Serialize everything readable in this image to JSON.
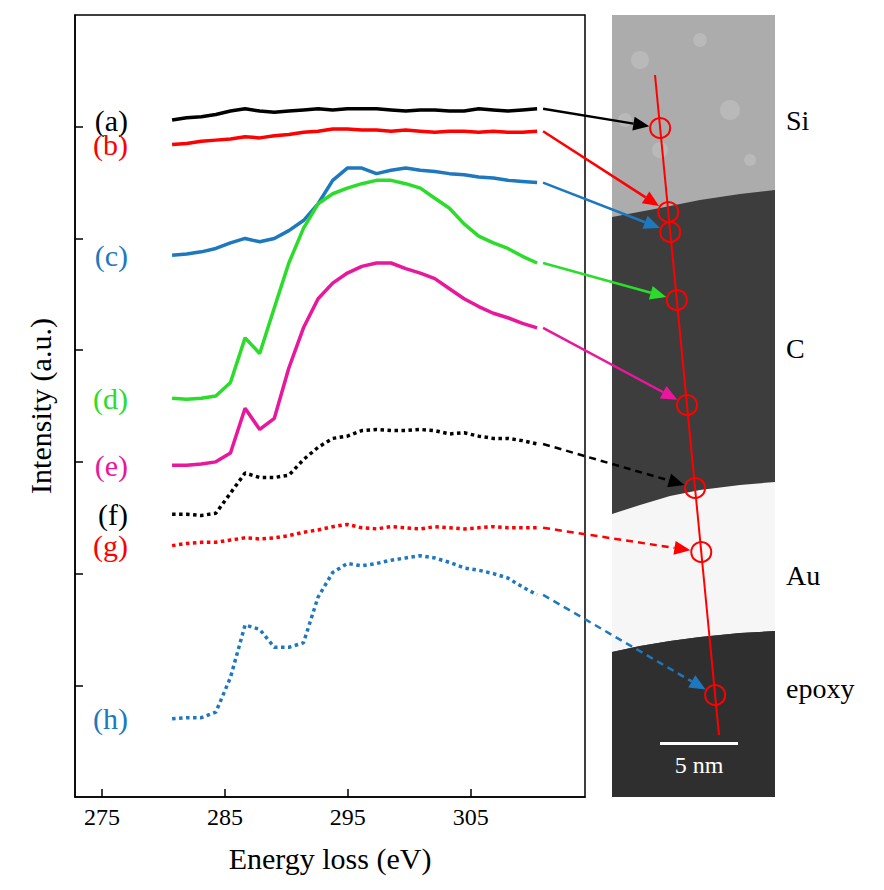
{
  "chart_data": {
    "type": "line",
    "x_label": "Energy loss (eV)",
    "y_label": "Intensity (a.u.)",
    "xlim": [
      272.8,
      314.3
    ],
    "xticks": [
      275,
      285,
      295,
      305
    ],
    "ylim": [
      0,
      7
    ],
    "yticks": [
      1,
      2,
      3,
      4,
      5,
      6
    ],
    "tick_labels": "x",
    "grid": false,
    "x": [
      280.7,
      281.89,
      283.08,
      284.26,
      285.45,
      286.64,
      287.83,
      289.02,
      290.2,
      291.39,
      292.58,
      293.77,
      294.96,
      296.14,
      297.33,
      298.52,
      299.71,
      300.9,
      302.08,
      303.27,
      304.46,
      305.65,
      306.84,
      308.02,
      309.21,
      310.4
    ],
    "series": [
      {
        "name": "(a)",
        "color": "#000000",
        "line_style": "solid",
        "values": [
          6.06,
          6.08,
          6.09,
          6.11,
          6.14,
          6.16,
          6.14,
          6.13,
          6.14,
          6.15,
          6.16,
          6.15,
          6.16,
          6.16,
          6.16,
          6.15,
          6.14,
          6.15,
          6.15,
          6.14,
          6.14,
          6.16,
          6.15,
          6.14,
          6.15,
          6.16
        ]
      },
      {
        "name": "(b)",
        "color": "#ff0000",
        "line_style": "solid",
        "values": [
          5.84,
          5.85,
          5.87,
          5.88,
          5.89,
          5.91,
          5.9,
          5.92,
          5.93,
          5.95,
          5.96,
          5.98,
          5.98,
          5.97,
          5.97,
          5.96,
          5.97,
          5.96,
          5.95,
          5.96,
          5.96,
          5.95,
          5.96,
          5.95,
          5.95,
          5.96
        ]
      },
      {
        "name": "(c)",
        "color": "#1e78be",
        "line_style": "solid",
        "values": [
          4.85,
          4.86,
          4.88,
          4.91,
          4.96,
          5.0,
          4.97,
          5.0,
          5.07,
          5.16,
          5.31,
          5.52,
          5.63,
          5.63,
          5.58,
          5.61,
          5.63,
          5.61,
          5.6,
          5.58,
          5.57,
          5.55,
          5.54,
          5.52,
          5.51,
          5.5
        ]
      },
      {
        "name": "(d)",
        "color": "#2bdc2b",
        "line_style": "solid",
        "values": [
          3.57,
          3.56,
          3.57,
          3.59,
          3.71,
          4.11,
          3.97,
          4.38,
          4.78,
          5.09,
          5.31,
          5.4,
          5.45,
          5.49,
          5.52,
          5.52,
          5.49,
          5.45,
          5.36,
          5.27,
          5.13,
          5.02,
          4.96,
          4.91,
          4.84,
          4.78
        ]
      },
      {
        "name": "(e)",
        "color": "#e8179b",
        "line_style": "solid",
        "values": [
          2.97,
          2.97,
          2.98,
          3.0,
          3.08,
          3.48,
          3.29,
          3.39,
          3.84,
          4.2,
          4.46,
          4.6,
          4.69,
          4.75,
          4.78,
          4.78,
          4.73,
          4.69,
          4.64,
          4.55,
          4.46,
          4.39,
          4.33,
          4.29,
          4.24,
          4.2
        ]
      },
      {
        "name": "(f)",
        "color": "#000000",
        "line_style": "dotted",
        "values": [
          2.53,
          2.53,
          2.52,
          2.54,
          2.72,
          2.9,
          2.86,
          2.86,
          2.88,
          3.02,
          3.13,
          3.21,
          3.23,
          3.28,
          3.29,
          3.28,
          3.28,
          3.29,
          3.28,
          3.25,
          3.26,
          3.23,
          3.21,
          3.21,
          3.19,
          3.16
        ]
      },
      {
        "name": "(g)",
        "color": "#ff0000",
        "line_style": "dotted",
        "values": [
          2.25,
          2.27,
          2.28,
          2.28,
          2.3,
          2.32,
          2.31,
          2.32,
          2.34,
          2.37,
          2.39,
          2.42,
          2.44,
          2.41,
          2.4,
          2.42,
          2.41,
          2.4,
          2.42,
          2.41,
          2.4,
          2.41,
          2.42,
          2.41,
          2.41,
          2.41
        ]
      },
      {
        "name": "(h)",
        "color": "#1e78be",
        "line_style": "dotted",
        "values": [
          0.7,
          0.71,
          0.71,
          0.76,
          1.07,
          1.54,
          1.5,
          1.34,
          1.34,
          1.38,
          1.79,
          2.01,
          2.09,
          2.07,
          2.09,
          2.12,
          2.14,
          2.16,
          2.14,
          2.1,
          2.05,
          2.03,
          2.0,
          1.96,
          1.88,
          1.81
        ]
      }
    ]
  },
  "micrograph": {
    "regions": [
      "Si",
      "C",
      "Au",
      "epoxy"
    ],
    "scale_bar": "5 nm"
  }
}
